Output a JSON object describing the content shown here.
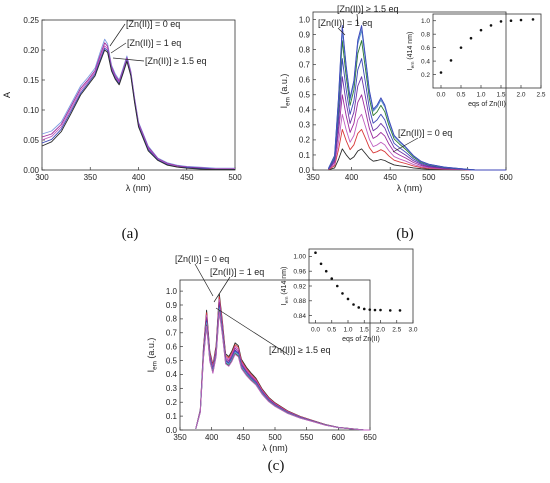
{
  "panels": [
    {
      "label": "(a)"
    },
    {
      "label": "(b)"
    },
    {
      "label": "(c)"
    }
  ],
  "colors": {
    "family": [
      "#2b2b2b",
      "#d83a3a",
      "#c05fc0",
      "#9c2a9c",
      "#6c34a8",
      "#3c46b8",
      "#2f7a2f",
      "#4a8ac6",
      "#7b9be0"
    ]
  },
  "chart_data": [
    {
      "type": "line",
      "panel": "a",
      "xlabel": "λ (nm)",
      "ylabel": "A",
      "xlim": [
        300,
        500
      ],
      "ylim": [
        0,
        0.25
      ],
      "xticks": [
        300,
        350,
        400,
        450,
        500
      ],
      "yticks": [
        0.0,
        0.05,
        0.1,
        0.15,
        0.2,
        0.25
      ],
      "x": [
        300,
        310,
        320,
        330,
        340,
        348,
        355,
        360,
        365,
        368,
        372,
        376,
        380,
        384,
        388,
        392,
        396,
        400,
        410,
        420,
        430,
        440,
        450,
        460,
        470,
        480,
        490,
        500
      ],
      "series": [
        {
          "values": [
            0.06,
            0.065,
            0.08,
            0.11,
            0.14,
            0.155,
            0.17,
            0.195,
            0.218,
            0.21,
            0.175,
            0.16,
            0.15,
            0.17,
            0.19,
            0.165,
            0.12,
            0.08,
            0.04,
            0.02,
            0.012,
            0.008,
            0.006,
            0.005,
            0.004,
            0.003,
            0.003,
            0.003
          ]
        },
        {
          "values": [
            0.055,
            0.06,
            0.076,
            0.106,
            0.136,
            0.151,
            0.166,
            0.19,
            0.212,
            0.206,
            0.172,
            0.157,
            0.148,
            0.167,
            0.187,
            0.163,
            0.118,
            0.078,
            0.038,
            0.019,
            0.011,
            0.007,
            0.005,
            0.004,
            0.003,
            0.002,
            0.002,
            0.002
          ]
        },
        {
          "values": [
            0.05,
            0.056,
            0.072,
            0.102,
            0.132,
            0.148,
            0.163,
            0.186,
            0.207,
            0.202,
            0.169,
            0.155,
            0.146,
            0.165,
            0.185,
            0.161,
            0.116,
            0.076,
            0.036,
            0.018,
            0.01,
            0.006,
            0.004,
            0.003,
            0.002,
            0.002,
            0.002,
            0.002
          ]
        },
        {
          "values": [
            0.045,
            0.051,
            0.068,
            0.098,
            0.128,
            0.145,
            0.16,
            0.182,
            0.203,
            0.199,
            0.167,
            0.153,
            0.144,
            0.163,
            0.183,
            0.159,
            0.114,
            0.074,
            0.034,
            0.017,
            0.009,
            0.005,
            0.004,
            0.003,
            0.002,
            0.001,
            0.001,
            0.001
          ]
        },
        {
          "values": [
            0.04,
            0.047,
            0.064,
            0.094,
            0.125,
            0.142,
            0.157,
            0.179,
            0.2,
            0.196,
            0.165,
            0.151,
            0.142,
            0.161,
            0.181,
            0.157,
            0.112,
            0.072,
            0.032,
            0.016,
            0.008,
            0.005,
            0.003,
            0.002,
            0.001,
            0.001,
            0.001,
            0.001
          ]
        }
      ],
      "annotations": [
        "[Zn(II)] = 0 eq",
        "[Zn(II)] = 1 eq",
        "[Zn(II)] ≥ 1.5 eq"
      ]
    },
    {
      "type": "line",
      "panel": "b",
      "xlabel": "λ (nm)",
      "ylabel": "Iem (a.u.)",
      "xlim": [
        350,
        600
      ],
      "ylim": [
        0,
        1.05
      ],
      "xticks": [
        350,
        400,
        450,
        500,
        550,
        600
      ],
      "yticks": [
        0.0,
        0.1,
        0.2,
        0.3,
        0.4,
        0.5,
        0.6,
        0.7,
        0.8,
        0.9,
        1.0
      ],
      "x": [
        370,
        378,
        383,
        388,
        393,
        398,
        403,
        408,
        413,
        418,
        423,
        428,
        433,
        438,
        443,
        448,
        455,
        462,
        470,
        480,
        490,
        500,
        520,
        540,
        560,
        580,
        600
      ],
      "peak_profile": [
        0.01,
        0.1,
        0.5,
        1.0,
        0.72,
        0.5,
        0.62,
        0.9,
        1.0,
        0.78,
        0.55,
        0.42,
        0.45,
        0.5,
        0.45,
        0.35,
        0.24,
        0.2,
        0.16,
        0.1,
        0.06,
        0.04,
        0.02,
        0.01,
        0.0,
        0.0,
        0.0
      ],
      "series_peaks": [
        0.14,
        0.27,
        0.37,
        0.5,
        0.62,
        0.74,
        0.86,
        0.93,
        0.95,
        0.96
      ],
      "annotations": [
        "[Zn(II)] ≥ 1.5 eq",
        "[Zn(II)] = 1 eq",
        "[Zn(II)] = 0 eq"
      ],
      "inset": {
        "type": "scatter",
        "xlabel": "eqs of Zn(II)",
        "ylabel": "Iem (414 nm)",
        "xlim": [
          -0.2,
          2.5
        ],
        "ylim": [
          0,
          1.1
        ],
        "xticks": [
          0.0,
          0.5,
          1.0,
          1.5,
          2.0,
          2.5
        ],
        "yticks": [
          0.2,
          0.4,
          0.6,
          0.8,
          1.0
        ],
        "x": [
          0.0,
          0.25,
          0.5,
          0.75,
          1.0,
          1.25,
          1.5,
          1.75,
          2.0,
          2.3
        ],
        "y": [
          0.23,
          0.41,
          0.6,
          0.74,
          0.86,
          0.93,
          0.99,
          1.0,
          1.01,
          1.02
        ]
      }
    },
    {
      "type": "line",
      "panel": "c",
      "xlabel": "λ (nm)",
      "ylabel": "Iem (a.u.)",
      "xlim": [
        350,
        650
      ],
      "ylim": [
        0,
        1.08
      ],
      "xticks": [
        350,
        400,
        450,
        500,
        550,
        600,
        650
      ],
      "yticks": [
        0.0,
        0.1,
        0.2,
        0.3,
        0.4,
        0.5,
        0.6,
        0.7,
        0.8,
        0.9,
        1.0
      ],
      "x": [
        375,
        382,
        387,
        392,
        397,
        402,
        407,
        412,
        417,
        422,
        427,
        432,
        437,
        442,
        447,
        455,
        462,
        470,
        480,
        490,
        500,
        520,
        540,
        560,
        580,
        600,
        620,
        640,
        650
      ],
      "peak_profile": [
        0.01,
        0.15,
        0.6,
        0.88,
        0.58,
        0.48,
        0.62,
        1.0,
        0.8,
        0.56,
        0.54,
        0.58,
        0.64,
        0.62,
        0.52,
        0.46,
        0.42,
        0.38,
        0.3,
        0.24,
        0.2,
        0.14,
        0.1,
        0.07,
        0.04,
        0.02,
        0.01,
        0.0,
        0.0
      ],
      "series_peaks": [
        0.98,
        0.96,
        0.94,
        0.92,
        0.9,
        0.89,
        0.88,
        0.87,
        0.86,
        0.85
      ],
      "annotations": [
        "[Zn(II)] = 0 eq",
        "[Zn(II)] = 1 eq",
        "[Zn(II)] ≥ 1.5 eq"
      ],
      "inset": {
        "type": "scatter",
        "xlabel": "eqs of Zn(II)",
        "ylabel": "Iem (414 nm)",
        "xlim": [
          -0.2,
          3.0
        ],
        "ylim": [
          0.82,
          1.02
        ],
        "xticks": [
          0.0,
          0.5,
          1.0,
          1.5,
          2.0,
          2.5,
          3.0
        ],
        "yticks": [
          0.84,
          0.88,
          0.92,
          0.96,
          1.0
        ],
        "x": [
          0.0,
          0.17,
          0.33,
          0.5,
          0.67,
          0.83,
          1.0,
          1.17,
          1.33,
          1.5,
          1.67,
          1.83,
          2.0,
          2.3,
          2.6
        ],
        "y": [
          1.01,
          0.98,
          0.96,
          0.94,
          0.92,
          0.9,
          0.885,
          0.87,
          0.862,
          0.858,
          0.856,
          0.855,
          0.855,
          0.854,
          0.854
        ]
      }
    }
  ]
}
